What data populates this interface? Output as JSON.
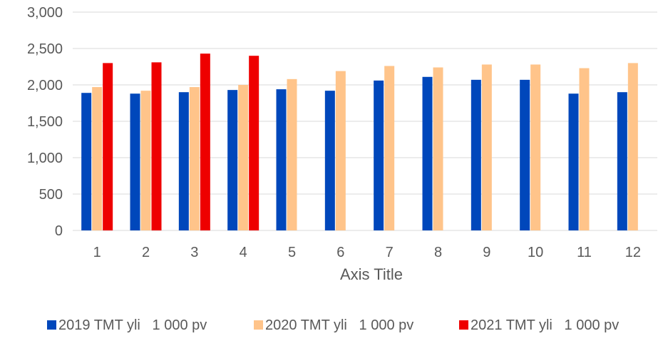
{
  "chart_data": {
    "type": "bar",
    "title": "",
    "xlabel": "Axis Title",
    "ylabel": "",
    "ylim": [
      0,
      3000
    ],
    "yticks": [
      "0",
      "500",
      "1,000",
      "1,500",
      "2,000",
      "2,500",
      "3,000"
    ],
    "yticks_values": [
      0,
      500,
      1000,
      1500,
      2000,
      2500,
      3000
    ],
    "categories": [
      "1",
      "2",
      "3",
      "4",
      "5",
      "6",
      "7",
      "8",
      "9",
      "10",
      "11",
      "12"
    ],
    "grid": true,
    "legend_position": "bottom",
    "series": [
      {
        "name": "2019 TMT yli   1 000 pv",
        "color": "#0047BB",
        "values": [
          1890,
          1880,
          1900,
          1930,
          1940,
          1920,
          2060,
          2110,
          2070,
          2070,
          1880,
          1900
        ]
      },
      {
        "name": "2020 TMT yli   1 000 pv",
        "color": "#FFC48A",
        "values": [
          1970,
          1920,
          1970,
          2000,
          2080,
          2190,
          2260,
          2240,
          2280,
          2280,
          2230,
          2300
        ]
      },
      {
        "name": "2021 TMT yli   1 000 pv",
        "color": "#EE0000",
        "values": [
          2300,
          2310,
          2430,
          2400,
          null,
          null,
          null,
          null,
          null,
          null,
          null,
          null
        ]
      }
    ]
  }
}
